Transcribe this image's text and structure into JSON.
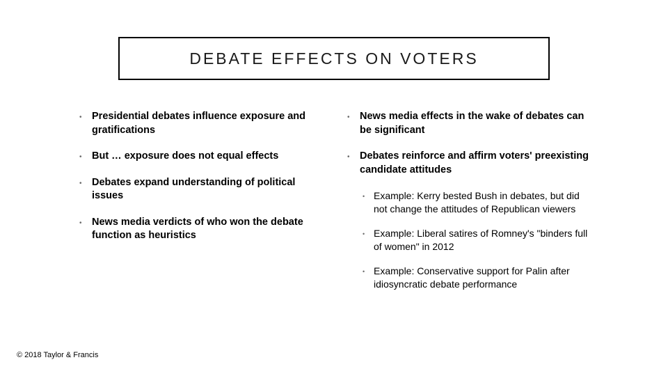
{
  "slide": {
    "title": "DEBATE EFFECTS ON VOTERS",
    "title_fontsize": 23,
    "title_letter_spacing": 3,
    "title_border_color": "#000000",
    "title_border_width": 2,
    "background_color": "#ffffff",
    "text_color": "#000000",
    "bullet_dot_color": "#6a6a6a",
    "body_fontsize": 14.5,
    "sub_body_fontsize": 14,
    "line_height": 1.35,
    "columns": {
      "left": {
        "bullets": [
          "Presidential debates influence exposure and gratifications",
          "But … exposure does not equal effects",
          "Debates expand understanding of political issues",
          "News media verdicts of who won the debate function as heuristics"
        ]
      },
      "right": {
        "bullets": [
          "News media effects in the wake of debates can be significant",
          "Debates reinforce and affirm voters' preexisting candidate attitudes"
        ],
        "sub_bullets": [
          "Example: Kerry bested Bush in debates, but did not change the attitudes of Republican viewers",
          "Example: Liberal satires of Romney's \"binders full of women\" in 2012",
          "Example: Conservative support for Palin after idiosyncratic debate performance"
        ]
      }
    },
    "footer": "© 2018 Taylor & Francis"
  }
}
